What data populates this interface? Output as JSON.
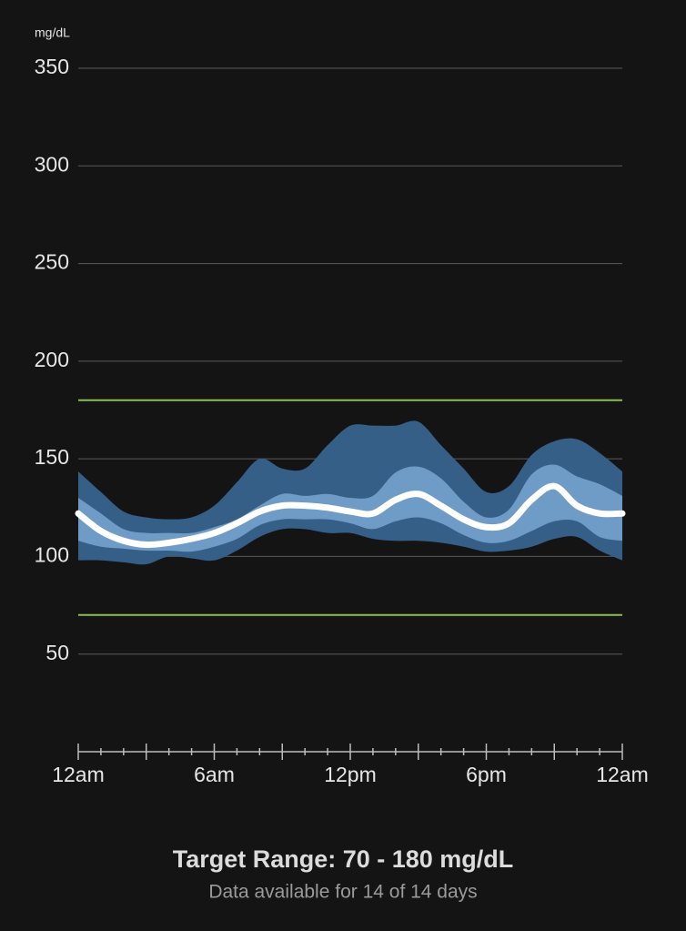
{
  "chart_data": {
    "type": "percentile-bands",
    "y_label": "mg/dL",
    "title": "Target Range: 70 - 180 mg/dL",
    "subtitle": "Data available for 14 of 14 days",
    "x": [
      0,
      1,
      2,
      3,
      4,
      5,
      6,
      7,
      8,
      9,
      10,
      11,
      12,
      13,
      14,
      15,
      16,
      17,
      18,
      19,
      20,
      21,
      22,
      23,
      24
    ],
    "xlim": [
      0,
      24
    ],
    "xticks": [
      {
        "value": 0,
        "label": "12am"
      },
      {
        "value": 6,
        "label": "6am"
      },
      {
        "value": 12,
        "label": "12pm"
      },
      {
        "value": 18,
        "label": "6pm"
      },
      {
        "value": 24,
        "label": "12am"
      }
    ],
    "xminorticks": [
      0,
      1,
      2,
      3,
      4,
      5,
      6,
      7,
      8,
      9,
      10,
      11,
      12,
      13,
      14,
      15,
      16,
      17,
      18,
      19,
      20,
      21,
      22,
      23,
      24
    ],
    "ylim": [
      0,
      350
    ],
    "yticks": [
      50,
      100,
      150,
      200,
      250,
      300,
      350
    ],
    "grid": true,
    "target_range": [
      70,
      180
    ],
    "target_color": "#8dbf4f",
    "bands": [
      {
        "color": "#365f88",
        "upper": [
          143.5,
          133,
          123,
          120,
          119,
          120,
          126,
          138,
          150,
          145,
          145,
          157,
          167,
          167,
          167,
          169,
          157,
          145,
          133,
          136,
          152,
          159,
          160,
          153,
          143.5
        ],
        "lower": [
          98,
          98,
          97,
          96,
          100,
          99,
          98,
          103,
          110,
          114,
          114,
          112,
          112,
          109,
          108,
          108,
          107,
          105,
          102.5,
          103,
          105,
          109,
          110,
          103,
          98
        ]
      },
      {
        "color": "#6f9bc7",
        "upper": [
          130,
          122,
          114,
          112,
          112,
          112,
          115,
          119,
          126,
          132,
          131,
          132,
          130,
          131,
          143,
          146,
          140,
          128,
          120,
          124,
          142,
          147,
          141,
          137,
          131
        ],
        "lower": [
          108,
          105,
          104,
          103,
          103,
          102.5,
          105,
          109,
          116,
          119,
          119,
          119,
          117,
          114,
          118,
          120,
          117,
          111,
          107,
          108,
          113,
          118,
          118,
          110,
          108
        ]
      }
    ],
    "median": {
      "color": "#ffffff",
      "values": [
        122,
        113,
        108,
        106,
        107,
        109,
        112,
        117,
        123,
        126,
        126,
        125,
        123,
        122,
        129,
        132,
        126,
        119,
        115,
        117,
        129,
        136,
        126,
        122,
        122
      ]
    }
  }
}
